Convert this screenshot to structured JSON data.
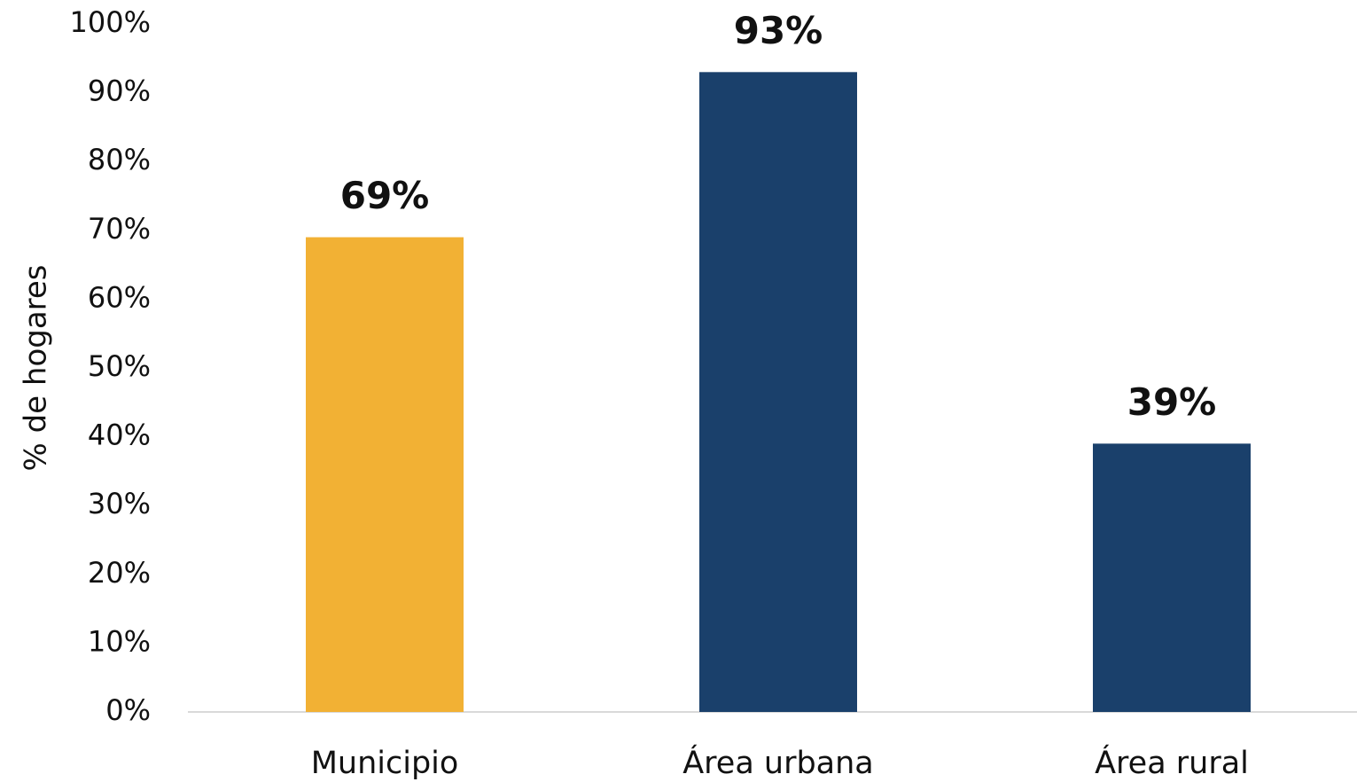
{
  "chart_data": {
    "type": "bar",
    "y_label": "% de hogares",
    "categories": [
      "Municipio",
      "Área urbana",
      "Área rural"
    ],
    "values": [
      69,
      93,
      39
    ],
    "value_labels": [
      "69%",
      "93%",
      "39%"
    ],
    "colors": [
      "#f2b134",
      "#1a406b",
      "#1a406b"
    ],
    "ylim": [
      0,
      100
    ],
    "yticks": [
      {
        "value": 0,
        "label": "0%"
      },
      {
        "value": 10,
        "label": "10%"
      },
      {
        "value": 20,
        "label": "20%"
      },
      {
        "value": 30,
        "label": "30%"
      },
      {
        "value": 40,
        "label": "40%"
      },
      {
        "value": 50,
        "label": "50%"
      },
      {
        "value": 60,
        "label": "60%"
      },
      {
        "value": 70,
        "label": "70%"
      },
      {
        "value": 80,
        "label": "80%"
      },
      {
        "value": 90,
        "label": "90%"
      },
      {
        "value": 100,
        "label": "100%"
      }
    ],
    "grid": false
  }
}
